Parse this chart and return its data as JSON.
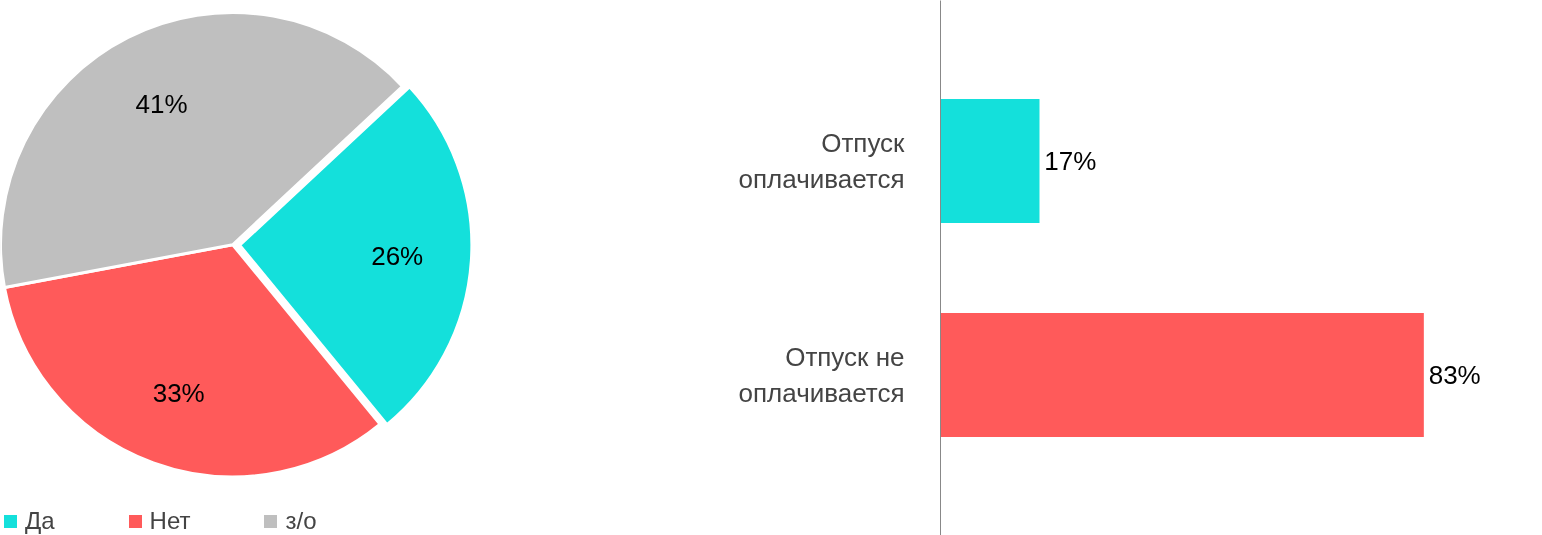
{
  "chart_data": [
    {
      "type": "pie",
      "categories": [
        "Да",
        "Нет",
        "з/о"
      ],
      "values": [
        26,
        33,
        41
      ],
      "colors": [
        "#14e0db",
        "#ff5a5a",
        "#bfbfbf"
      ],
      "value_labels": [
        "26%",
        "33%",
        "41%"
      ],
      "legend": "bottom left"
    },
    {
      "type": "bar",
      "orientation": "horizontal",
      "categories": [
        "Отпуск оплачивается",
        "Отпуск не оплачивается"
      ],
      "values": [
        17,
        83
      ],
      "colors": [
        "#14e0db",
        "#ff5a5a"
      ],
      "value_labels": [
        "17%",
        "83%"
      ],
      "tick_labels": "y"
    }
  ]
}
